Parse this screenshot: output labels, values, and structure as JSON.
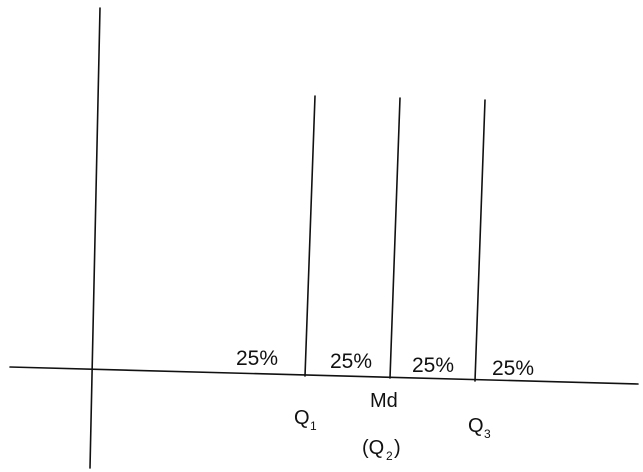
{
  "segments": {
    "seg1": "25%",
    "seg2": "25%",
    "seg3": "25%",
    "seg4": "25%"
  },
  "labels": {
    "q1_letter": "Q",
    "q1_sub": "1",
    "median": "Md",
    "q2_open": "(Q",
    "q2_sub": "2",
    "q2_close": ")",
    "q3_letter": "Q",
    "q3_sub": "3"
  },
  "style": {
    "line_color": "#111111",
    "text_color": "#111111"
  }
}
